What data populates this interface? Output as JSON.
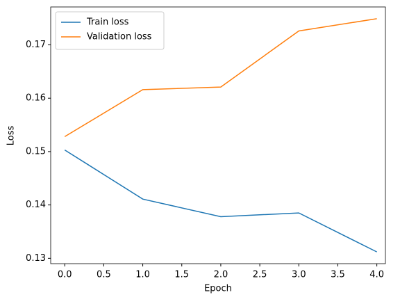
{
  "chart_data": {
    "type": "line",
    "x_label": "Epoch",
    "y_label": "Loss",
    "x": [
      0,
      1,
      2,
      3,
      4
    ],
    "series": [
      {
        "name": "Train loss",
        "color": "#1f77b4",
        "values": [
          0.1503,
          0.1411,
          0.1378,
          0.1385,
          0.1312
        ]
      },
      {
        "name": "Validation loss",
        "color": "#ff7f0e",
        "values": [
          0.1528,
          0.1616,
          0.1621,
          0.1726,
          0.1749
        ]
      }
    ],
    "xlim": [
      -0.18,
      4.11
    ],
    "xticks": [
      {
        "value": 0,
        "label": "0.0"
      },
      {
        "value": 0.5,
        "label": "0.5"
      },
      {
        "value": 1,
        "label": "1.0"
      },
      {
        "value": 1.5,
        "label": "1.5"
      },
      {
        "value": 2,
        "label": "2.0"
      },
      {
        "value": 2.5,
        "label": "2.5"
      },
      {
        "value": 3,
        "label": "3.0"
      },
      {
        "value": 3.5,
        "label": "3.5"
      },
      {
        "value": 4,
        "label": "4.0"
      }
    ],
    "ylim": [
      0.129,
      0.1771
    ],
    "yticks": [
      0.13,
      0.14,
      0.15,
      0.16,
      0.17
    ],
    "legend": "upper left"
  }
}
